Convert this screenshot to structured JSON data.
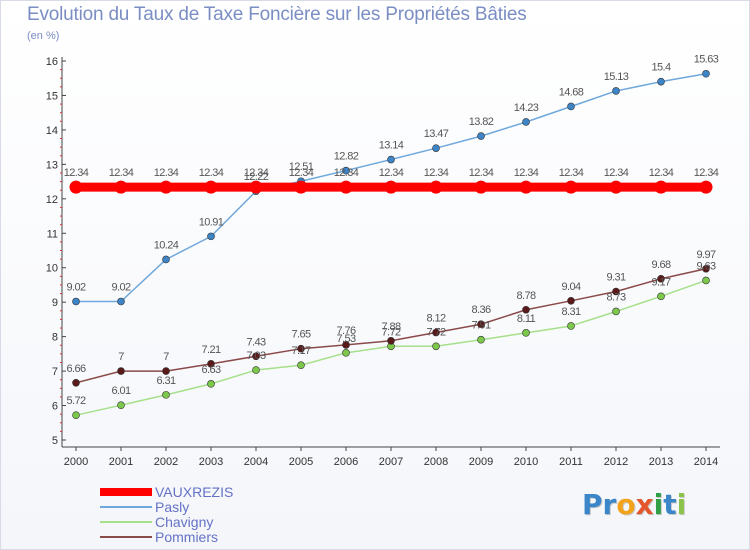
{
  "header": {
    "title": "Evolution du Taux de Taxe Foncière sur les Propriétés Bâties",
    "subtitle": "(en %)"
  },
  "logo": {
    "parts": [
      "Pr",
      "o",
      "x",
      "i",
      "t",
      "i"
    ]
  },
  "chart_data": {
    "type": "line",
    "title": "Evolution du Taux de Taxe Foncière sur les Propriétés Bâties",
    "ylabel": "(en %)",
    "xlabel": "",
    "ylim": [
      5,
      16
    ],
    "yticks": [
      "5",
      "6",
      "7",
      "8",
      "9",
      "10",
      "11",
      "12",
      "13",
      "14",
      "15",
      "16"
    ],
    "x": [
      "2000",
      "2001",
      "2002",
      "2003",
      "2004",
      "2005",
      "2006",
      "2007",
      "2008",
      "2009",
      "2010",
      "2011",
      "2012",
      "2013",
      "2014"
    ],
    "grid": false,
    "legend_position": "bottom-left",
    "series": [
      {
        "name": "VAUXREZIS",
        "color": "#ff0000",
        "style": "thick",
        "values": [
          12.34,
          12.34,
          12.34,
          12.34,
          12.34,
          12.34,
          12.34,
          12.34,
          12.34,
          12.34,
          12.34,
          12.34,
          12.34,
          12.34,
          12.34
        ],
        "labels": [
          "12.34",
          "12.34",
          "12.34",
          "12.34",
          "12.34",
          "12.34",
          "12.34",
          "12.34",
          "12.34",
          "12.34",
          "12.34",
          "12.34",
          "12.34",
          "12.34",
          "12.34"
        ]
      },
      {
        "name": "Pasly",
        "color": "#6fa8dc",
        "point_color": "#3d85c6",
        "values": [
          9.02,
          9.02,
          10.24,
          10.91,
          12.22,
          12.51,
          12.82,
          13.14,
          13.47,
          13.82,
          14.23,
          14.68,
          15.13,
          15.4,
          15.63
        ],
        "labels": [
          "9.02",
          "9.02",
          "10.24",
          "10.91",
          "12.22",
          "12.51",
          "12.82",
          "13.14",
          "13.47",
          "13.82",
          "14.23",
          "14.68",
          "15.13",
          "15.4",
          "15.63"
        ]
      },
      {
        "name": "Chavigny",
        "color": "#a6e08a",
        "point_color": "#7cc84a",
        "values": [
          5.72,
          6.01,
          6.31,
          6.63,
          7.03,
          7.17,
          7.53,
          7.72,
          7.72,
          7.91,
          8.11,
          8.31,
          8.73,
          9.17,
          9.63
        ],
        "labels": [
          "5.72",
          "6.01",
          "6.31",
          "6.63",
          "7.03",
          "7.17",
          "7.53",
          "7.72",
          "7.72",
          "7.91",
          "8.11",
          "8.31",
          "8.73",
          "9.17",
          "9.63"
        ]
      },
      {
        "name": "Pommiers",
        "color": "#8b4a4a",
        "point_color": "#5a1a1a",
        "values": [
          6.66,
          7,
          7,
          7.21,
          7.43,
          7.65,
          7.76,
          7.88,
          8.12,
          8.36,
          8.78,
          9.04,
          9.31,
          9.68,
          9.97
        ],
        "labels": [
          "6.66",
          "7",
          "7",
          "7.21",
          "7.43",
          "7.65",
          "7.76",
          "7.88",
          "8.12",
          "8.36",
          "8.78",
          "9.04",
          "9.31",
          "9.68",
          "9.97"
        ]
      }
    ]
  }
}
